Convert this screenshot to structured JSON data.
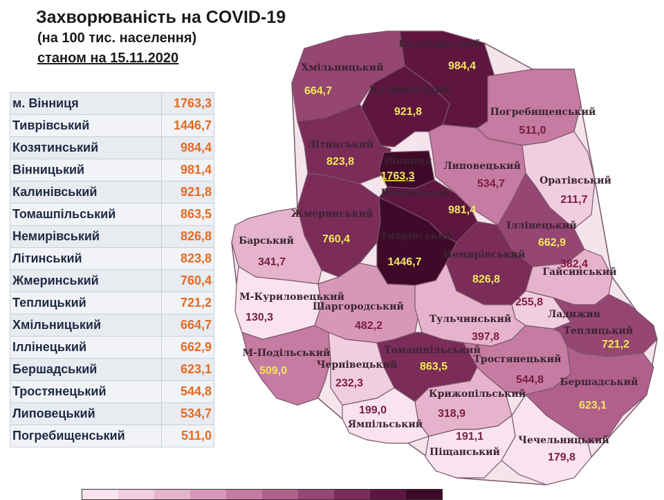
{
  "header": {
    "title": "Захворюваність на COVID-19",
    "subtitle": "(на 100 тис. населення)",
    "date_line": "станом на 15.11.2020"
  },
  "table": {
    "rows": [
      {
        "name": "м. Вінниця",
        "value": "1763,3"
      },
      {
        "name": "Тиврівський",
        "value": "1446,7"
      },
      {
        "name": "Козятинський",
        "value": "984,4"
      },
      {
        "name": "Вінницький",
        "value": "981,4"
      },
      {
        "name": "Калинівський",
        "value": "921,8"
      },
      {
        "name": "Томашпільський",
        "value": "863,5"
      },
      {
        "name": "Немирівський",
        "value": "826,8"
      },
      {
        "name": "Літинський",
        "value": "823,8"
      },
      {
        "name": "Жмеринський",
        "value": "760,4"
      },
      {
        "name": "Теплицький",
        "value": "721,2"
      },
      {
        "name": "Хмільницький",
        "value": "664,7"
      },
      {
        "name": "Іллінецький",
        "value": "662,9"
      },
      {
        "name": "Бершадський",
        "value": "623,1"
      },
      {
        "name": "Тростянецький",
        "value": "544,8"
      },
      {
        "name": "Липовецький",
        "value": "534,7"
      },
      {
        "name": "Погребищенський",
        "value": "511,0"
      }
    ]
  },
  "map": {
    "districts": [
      {
        "id": "kozyatyn",
        "name": "Козятинський",
        "value": "984,4"
      },
      {
        "id": "khmilnyk",
        "name": "Хмільницький",
        "value": "664,7"
      },
      {
        "id": "kalynivka",
        "name": "Калинівський",
        "value": "921,8"
      },
      {
        "id": "pohrebyshche",
        "name": "Погребищенський",
        "value": "511,0"
      },
      {
        "id": "lityn",
        "name": "Літинський",
        "value": "823,8"
      },
      {
        "id": "vinnytsia_city",
        "name": "Вінниця",
        "value": "1763,3"
      },
      {
        "id": "lypovets",
        "name": "Липовецький",
        "value": "534,7"
      },
      {
        "id": "orativ",
        "name": "Оратівський",
        "value": "211,7"
      },
      {
        "id": "vinnytskyi",
        "name": "Вінницький",
        "value": "981,4"
      },
      {
        "id": "zhmerynka",
        "name": "Жмеринський",
        "value": "760,4"
      },
      {
        "id": "illintsi",
        "name": "Іллінецький",
        "value": "662,9"
      },
      {
        "id": "bar",
        "name": "Барський",
        "value": "341,7"
      },
      {
        "id": "tyvriv",
        "name": "Тиврівський",
        "value": "1446,7"
      },
      {
        "id": "nemyriv",
        "name": "Немирівський",
        "value": "826,8"
      },
      {
        "id": "haisyn",
        "name": "Гайсинський",
        "value": "382,4"
      },
      {
        "id": "murovani_kurylivtsi",
        "name": "М-Куриловецький",
        "value": "130,3"
      },
      {
        "id": "sharhorod",
        "name": "Шаргородський",
        "value": "482,2"
      },
      {
        "id": "ladyzhyn",
        "name": "Ладижин",
        "value": "255,8"
      },
      {
        "id": "tulchyn",
        "name": "Тульчинський",
        "value": "397,8"
      },
      {
        "id": "teplyk",
        "name": "Теплицький",
        "value": "721,2"
      },
      {
        "id": "mohyliv_podilskyi",
        "name": "М-Подільський",
        "value": "509,0"
      },
      {
        "id": "tomashpil",
        "name": "Томашпільський",
        "value": "863,5"
      },
      {
        "id": "chernivtsi",
        "name": "Чернівецький",
        "value": "232,3"
      },
      {
        "id": "trostianets",
        "name": "Тростянецький",
        "value": "544,8"
      },
      {
        "id": "kryzhopil",
        "name": "Крижопільський",
        "value": "318,9"
      },
      {
        "id": "bershad",
        "name": "Бершадський",
        "value": "623,1"
      },
      {
        "id": "yampil",
        "name": "Ямпільський",
        "value": "199,0"
      },
      {
        "id": "pishchanka",
        "name": "Піщанський",
        "value": "191,1"
      },
      {
        "id": "chechelnyk",
        "name": "Чечельницький",
        "value": "179,8"
      }
    ],
    "legend_colors": [
      "#f9e3ef",
      "#f1cde0",
      "#e6b3cd",
      "#d797b9",
      "#c57ba2",
      "#b0608b",
      "#964672",
      "#7b2c58",
      "#5e1640",
      "#3f0a29"
    ]
  }
}
